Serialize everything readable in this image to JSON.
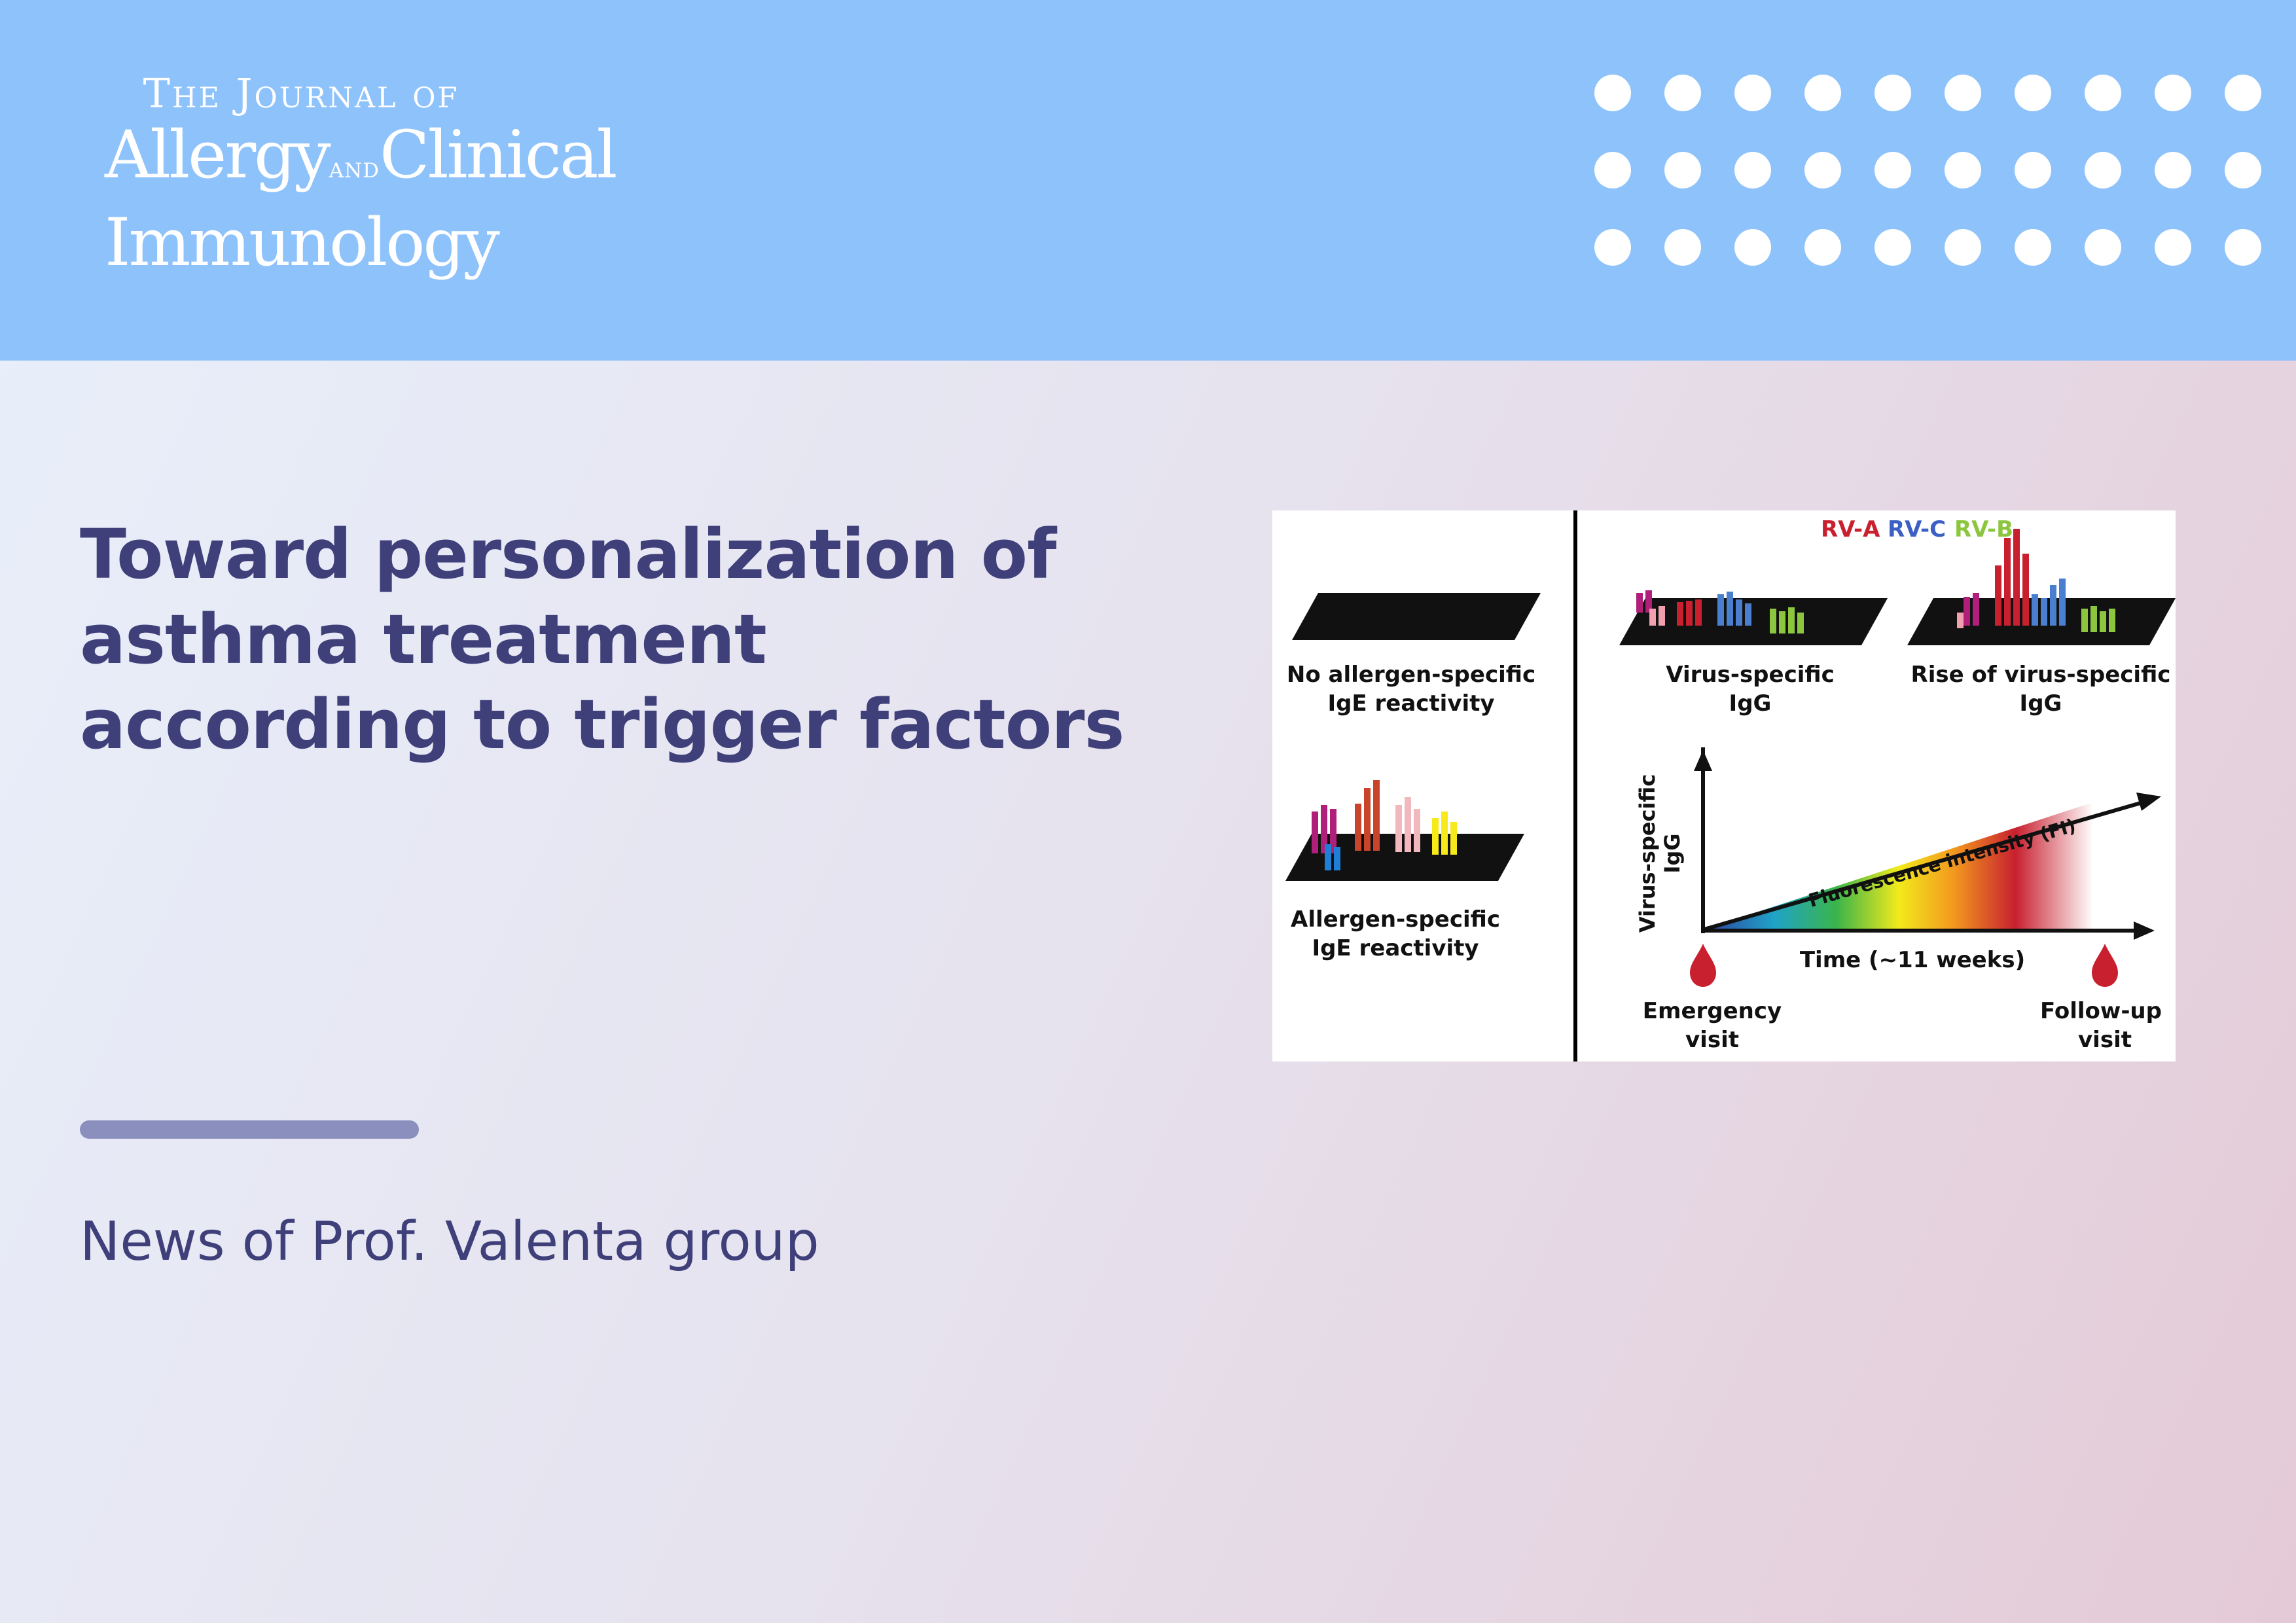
{
  "header": {
    "logo": {
      "line1": "The Journal of",
      "line2a": "Allergy",
      "line2_and": "and",
      "line2b": "Clinical",
      "line3": "Immunology"
    },
    "dots": {
      "rows": 3,
      "cols": 10,
      "color": "#ffffff"
    },
    "background_color": "#8ec2fa"
  },
  "main": {
    "title_lines": [
      "Toward personalization of",
      "asthma treatment",
      "according to trigger factors"
    ],
    "subtitle": "News of Prof. Valenta group",
    "text_color": "#3f3f7a",
    "divider_color": "#8a8fbd"
  },
  "figure": {
    "legend": [
      {
        "label": "RV-A",
        "color": "#c8202f"
      },
      {
        "label": "RV-C",
        "color": "#3b5fc4"
      },
      {
        "label": "RV-B",
        "color": "#8cc63f"
      }
    ],
    "left_top_label": [
      "No allergen-specific",
      "IgE reactivity"
    ],
    "left_bottom_label": [
      "Allergen-specific",
      "IgE reactivity"
    ],
    "right_mid_label": [
      "Virus-specific",
      "IgG"
    ],
    "right_end_label": [
      "Rise of virus-specific",
      "IgG"
    ],
    "y_axis_label": [
      "Virus-specific",
      "IgG"
    ],
    "slope_label": "Fluorescence intensity (FI)",
    "x_axis_label": "Time (~11 weeks)",
    "visit_start": [
      "Emergency",
      "visit"
    ],
    "visit_end": [
      "Follow-up",
      "visit"
    ]
  }
}
